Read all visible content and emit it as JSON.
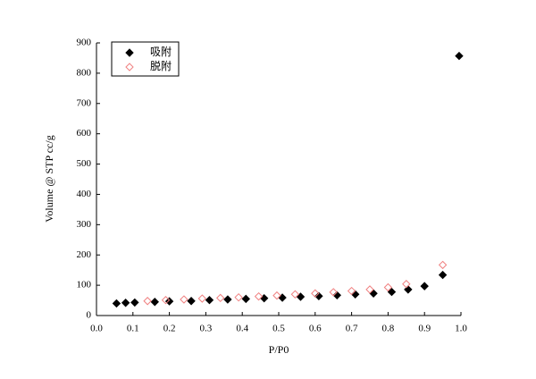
{
  "chart_data": {
    "type": "scatter",
    "x_label": "P/P0",
    "y_label": "Volume @ STP cc/g",
    "xlim": [
      0,
      1
    ],
    "ylim": [
      0,
      900
    ],
    "xticks": [
      {
        "value": 0,
        "label": "0.0"
      },
      0.1,
      0.2,
      0.3,
      0.4,
      0.5,
      0.6,
      0.7,
      0.8,
      0.9,
      {
        "value": 1,
        "label": "1.0"
      }
    ],
    "yticks": [
      0,
      100,
      200,
      300,
      400,
      500,
      600,
      700,
      800,
      900
    ],
    "legend": "upper left",
    "series": [
      {
        "name": "吸附",
        "color": "#000000",
        "marker": "filled-diamond",
        "x": [
          0.055,
          0.08,
          0.105,
          0.16,
          0.2,
          0.26,
          0.31,
          0.36,
          0.41,
          0.46,
          0.51,
          0.56,
          0.61,
          0.66,
          0.71,
          0.76,
          0.81,
          0.855,
          0.9,
          0.95,
          0.995
        ],
        "values": [
          40,
          42,
          43,
          45,
          47,
          48,
          51,
          53,
          55,
          57,
          59,
          62,
          64,
          67,
          70,
          73,
          78,
          86,
          97,
          134,
          857
        ]
      },
      {
        "name": "脱附",
        "color": "#f08080",
        "marker": "open-diamond",
        "x": [
          0.14,
          0.19,
          0.24,
          0.29,
          0.34,
          0.39,
          0.445,
          0.495,
          0.545,
          0.6,
          0.65,
          0.7,
          0.75,
          0.8,
          0.85,
          0.95
        ],
        "values": [
          48,
          51,
          53,
          56,
          58,
          60,
          63,
          66,
          70,
          73,
          77,
          81,
          86,
          93,
          104,
          167
        ]
      }
    ]
  }
}
